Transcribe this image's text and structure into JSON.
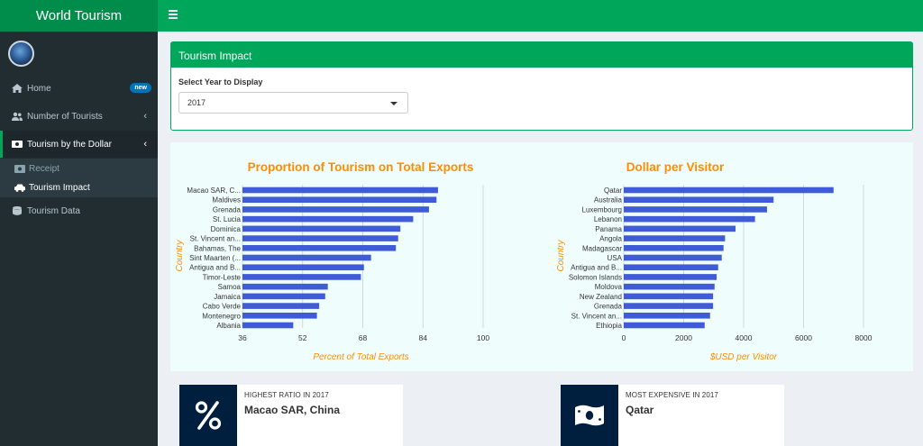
{
  "header": {
    "title": "World Tourism"
  },
  "sidebar": {
    "items": [
      {
        "label": "Home",
        "badge": "new"
      },
      {
        "label": "Number of Tourists"
      },
      {
        "label": "Tourism by the Dollar"
      },
      {
        "label": "Tourism Data"
      }
    ],
    "submenu": [
      {
        "label": "Receipt"
      },
      {
        "label": "Tourism Impact"
      }
    ]
  },
  "panel": {
    "title": "Tourism Impact",
    "select_label": "Select Year to Display",
    "select_value": "2017"
  },
  "chart_data": [
    {
      "type": "bar",
      "orientation": "horizontal",
      "title": "Proportion of Tourism on Total Exports",
      "xlabel": "Percent of Total Exports",
      "ylabel": "Country",
      "xlim": [
        36,
        100
      ],
      "xticks": [
        36,
        52,
        68,
        84,
        100
      ],
      "categories": [
        "Macao SAR, C...",
        "Maldives",
        "Grenada",
        "St. Lucia",
        "Dominica",
        "St. Vincent an...",
        "Bahamas, The",
        "Sint Maarten (...",
        "Antigua and B...",
        "Timor-Leste",
        "Samoa",
        "Jamaica",
        "Cabo Verde",
        "Montenegro",
        "Albania"
      ],
      "values": [
        88,
        87.6,
        85.6,
        81.4,
        78,
        77.4,
        76.8,
        70.2,
        68.3,
        67.5,
        58.7,
        58,
        56.4,
        55.8,
        49.5
      ],
      "color": "#3f5bd6"
    },
    {
      "type": "bar",
      "orientation": "horizontal",
      "title": "Dollar per Visitor",
      "xlabel": "$USD per Visitor",
      "ylabel": "Country",
      "xlim": [
        0,
        8000
      ],
      "xticks": [
        0,
        2000,
        4000,
        6000,
        8000
      ],
      "categories": [
        "Qatar",
        "Australia",
        "Luxembourg",
        "Lebanon",
        "Panama",
        "Angola",
        "Madagascar",
        "USA",
        "Antigua and B...",
        "Solomon Islands",
        "Moldova",
        "New Zealand",
        "Grenada",
        "St. Vincent an...",
        "Ethiopia"
      ],
      "values": [
        7000,
        5000,
        4780,
        4380,
        3730,
        3380,
        3330,
        3270,
        3150,
        3100,
        3030,
        2980,
        2980,
        2880,
        2700
      ],
      "color": "#3f5bd6"
    }
  ],
  "info_boxes": [
    {
      "label": "HIGHEST RATIO IN 2017",
      "value": "Macao SAR, China",
      "icon": "percent-icon"
    },
    {
      "label": "MOST EXPENSIVE IN 2017",
      "value": "Qatar",
      "icon": "money-bill-icon"
    }
  ],
  "colors": {
    "accent": "#00a65a",
    "sidebar": "#222d32",
    "title_orange": "#ff8c00",
    "info_icon_bg": "#001f3f"
  }
}
